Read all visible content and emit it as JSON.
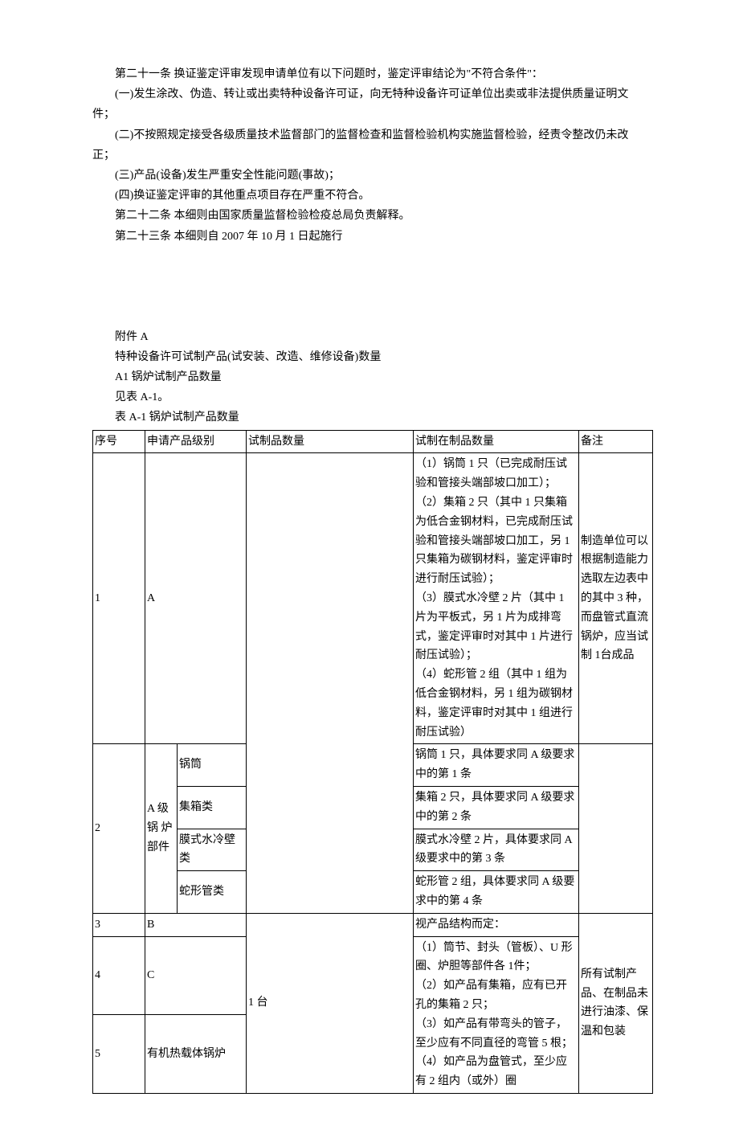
{
  "content": {
    "article21": "第二十一条   换证鉴定评审发现申请单位有以下问题时，鉴定评审结论为\"不符合条件\"：",
    "item1": "(一)发生涂改、伪造、转让或出卖特种设备许可证，向无特种设备许可证单位出卖或非法提供质量证明文件；",
    "item2": "(二)不按照规定接受各级质量技术监督部门的监督检查和监督检验机构实施监督检验，经责令整改仍未改正；",
    "item3": "(三)产品(设备)发生严重安全性能问题(事故)；",
    "item4": "(四)换证鉴定评审的其他重点项目存在严重不符合。",
    "article22": "第二十二条   本细则由国家质量监督检验检疫总局负责解释。",
    "article23": "第二十三条   本细则自 2007 年 10 月 1 日起施行"
  },
  "attachment": {
    "title": "附件 A",
    "subtitle": "特种设备许可试制产品(试安装、改造、维修设备)数量",
    "a1_title": "A1  锅炉试制产品数量",
    "see_table": "见表 A-1。",
    "table_title": "表 A-1  锅炉试制产品数量"
  },
  "table": {
    "headers": {
      "seq": "序号",
      "level": "申请产品级别",
      "trial": "试制品数量",
      "wip": "试制在制品数量",
      "note": "备注"
    },
    "row1": {
      "seq": "1",
      "level": "A",
      "wip": "（1）锅筒 1 只（已完成耐压试验和管接头端部坡口加工）；\n（2）集箱 2 只（其中 1 只集箱为低合金钢材料，已完成耐压试验和管接头端部坡口加工，另 1 只集箱为碳钢材料，鉴定评审时进行耐压试验）；\n（3）膜式水冷壁 2 片（其中 1 片为平板式，另 1 片为成排弯式，鉴定评审时对其中 1 片进行耐压试验）；\n（4）蛇形管 2 组（其中 1 组为低合金钢材料，另 1 组为碳钢材料，鉴定评审时对其中 1 组进行耐压试验）",
      "note": "制造单位可以根据制造能力选取左边表中的其中 3 种，而盘管式直流锅炉，应当试制 1台成品"
    },
    "row2": {
      "seq": "2",
      "level_main": "A 级锅 炉部件",
      "sub1_label": "锅筒",
      "sub1_wip": "锅筒 1 只，具体要求同 A 级要求中的第 1 条",
      "sub2_label": "集箱类",
      "sub2_wip": "集箱 2 只，具体要求同 A 级要求中的第 2 条",
      "sub3_label": "膜式水冷壁类",
      "sub3_wip": "膜式水冷壁 2 片，具体要求同 A 级要求中的第 3 条",
      "sub4_label": "蛇形管类",
      "sub4_wip": "蛇形管 2 组，具体要求同 A 级要求中的第 4 条"
    },
    "row3": {
      "seq": "3",
      "level": "B",
      "wip": "视产品结构而定："
    },
    "row4": {
      "seq": "4",
      "level": "C",
      "trial": "1 台",
      "wip": "（1）筒节、封头（管板）、U 形圈、炉胆等部件各 1件；\n（2）如产品有集箱，应有已开孔的集箱 2 只；\n（3）如产品有带弯头的管子，至少应有不同直径的弯管 5 根；\n（4）如产品为盘管式，至少应有 2 组内（或外）圈",
      "note": "所有试制产品、在制品未进行油漆、保温和包装"
    },
    "row5": {
      "seq": "5",
      "level": "有机热载体锅炉"
    }
  }
}
